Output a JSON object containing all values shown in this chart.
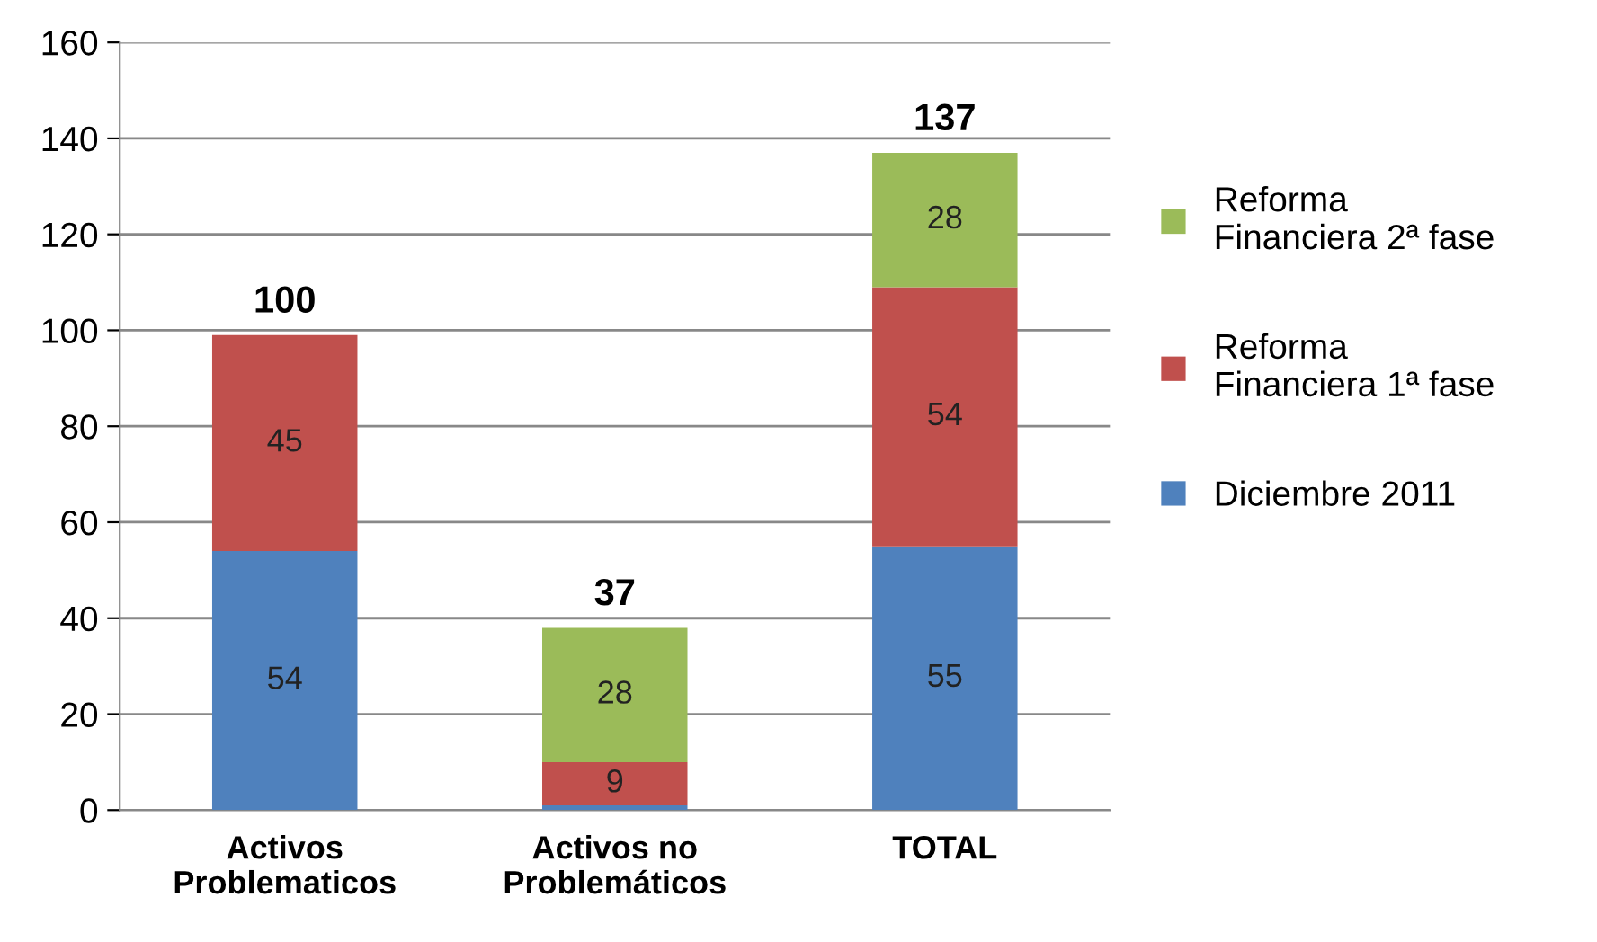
{
  "chart_data": {
    "type": "bar",
    "stacked": true,
    "categories": [
      "Activos\nProblematicos",
      "Activos no\nProblemáticos",
      "TOTAL"
    ],
    "series": [
      {
        "name": "Diciembre 2011",
        "color": "#4f81bd",
        "values": [
          54,
          1,
          55
        ],
        "value_labels": [
          "54",
          null,
          "55"
        ]
      },
      {
        "name": "Reforma\nFinanciera 1ª fase",
        "color": "#c0504d",
        "values": [
          45,
          9,
          54
        ],
        "value_labels": [
          "45",
          "9",
          "54"
        ]
      },
      {
        "name": "Reforma\nFinanciera 2ª fase",
        "color": "#9bbb59",
        "values": [
          null,
          28,
          28
        ],
        "value_labels": [
          null,
          "28",
          "28"
        ]
      }
    ],
    "totals": [
      "100",
      "37",
      "137"
    ],
    "ylim": [
      0,
      160
    ],
    "yticks": [
      0,
      20,
      40,
      60,
      80,
      100,
      120,
      140,
      160
    ],
    "grid": "y",
    "legend": "right"
  }
}
